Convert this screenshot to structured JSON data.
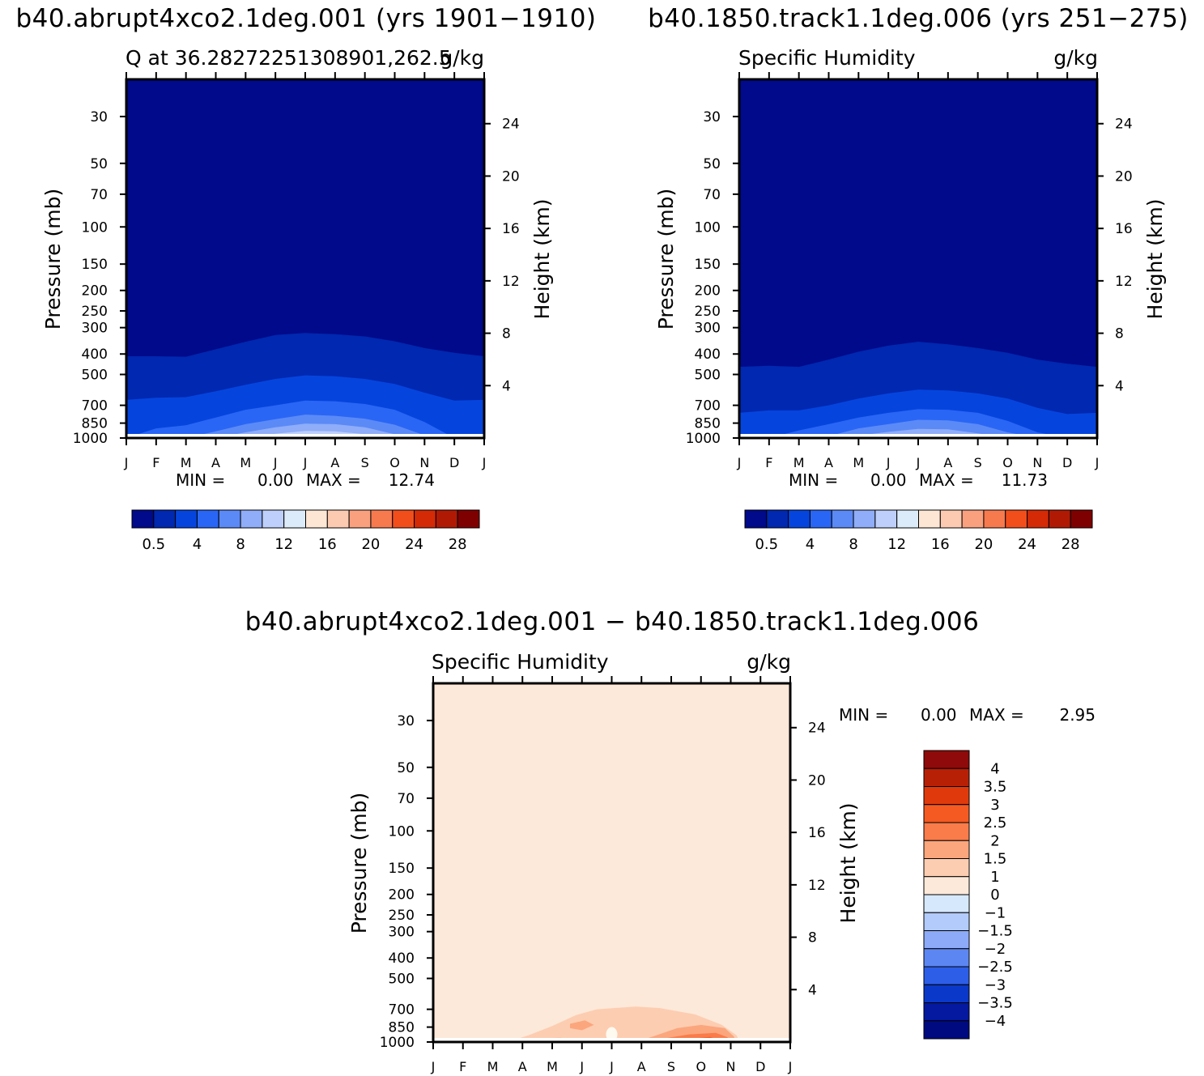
{
  "figure": {
    "panel_a_header": "b40.abrupt4xco2.1deg.001 (yrs 1901−1910)",
    "panel_b_header": "b40.1850.track1.1deg.006 (yrs 251−275)",
    "diff_header": "b40.abrupt4xco2.1deg.001 − b40.1850.track1.1deg.006"
  },
  "chart_data": [
    {
      "type": "contour",
      "title": "Q at 36.28272251308901,262.5",
      "units": "g/kg",
      "ylabel": "Pressure (mb)",
      "ylabel_right": "Height (km)",
      "x_ticks": [
        "J",
        "F",
        "M",
        "A",
        "M",
        "J",
        "J",
        "A",
        "S",
        "O",
        "N",
        "D",
        "J"
      ],
      "y_ticks": [
        "30",
        "50",
        "70",
        "100",
        "150",
        "200",
        "250",
        "300",
        "400",
        "500",
        "700",
        "850",
        "1000"
      ],
      "y_right_ticks": [
        "24",
        "20",
        "16",
        "12",
        "8",
        "4"
      ],
      "ylim": [
        1000,
        20
      ],
      "stats": {
        "min_label": "MIN =",
        "min": "0.00",
        "max_label": "MAX =",
        "max": "12.74"
      },
      "colorbar": {
        "orientation": "horizontal",
        "labels": [
          "0.5",
          "4",
          "8",
          "12",
          "16",
          "20",
          "24",
          "28"
        ],
        "colors": [
          "#000a8a",
          "#0028b0",
          "#0545de",
          "#2a66f5",
          "#5b8af7",
          "#8fadf8",
          "#bdcffa",
          "#dcebfa",
          "#fde6d4",
          "#fccab0",
          "#f9a07f",
          "#f77a4f",
          "#f24e1c",
          "#d42a06",
          "#b01a05",
          "#7f0000"
        ]
      },
      "contour_levels_shown": [
        {
          "level": 0.5,
          "top_pressure": [
            410,
            410,
            412,
            380,
            350,
            325,
            318,
            322,
            330,
            348,
            375,
            395,
            410
          ]
        },
        {
          "level": 2,
          "top_pressure": [
            660,
            645,
            640,
            600,
            560,
            525,
            505,
            510,
            525,
            555,
            610,
            665,
            660
          ]
        },
        {
          "level": 4,
          "top_pressure": [
            1000,
            900,
            870,
            800,
            735,
            700,
            665,
            670,
            690,
            735,
            840,
            1000,
            1000
          ]
        },
        {
          "level": 6,
          "top_pressure": [
            1000,
            1000,
            1000,
            930,
            860,
            815,
            775,
            785,
            810,
            865,
            970,
            1000,
            1000
          ]
        },
        {
          "level": 8,
          "top_pressure": [
            1000,
            1000,
            1000,
            1000,
            940,
            890,
            855,
            860,
            890,
            960,
            1000,
            1000,
            1000
          ]
        },
        {
          "level": 10,
          "top_pressure": [
            1000,
            1000,
            1000,
            1000,
            1000,
            955,
            925,
            930,
            960,
            1000,
            1000,
            1000,
            1000
          ]
        },
        {
          "level": 12,
          "top_pressure": [
            1000,
            1000,
            1000,
            1000,
            1000,
            1000,
            985,
            985,
            1000,
            1000,
            1000,
            1000,
            1000
          ]
        }
      ]
    },
    {
      "type": "contour",
      "title": "Specific Humidity",
      "units": "g/kg",
      "ylabel": "Pressure (mb)",
      "ylabel_right": "Height (km)",
      "x_ticks": [
        "J",
        "F",
        "M",
        "A",
        "M",
        "J",
        "J",
        "A",
        "S",
        "O",
        "N",
        "D",
        "J"
      ],
      "y_ticks": [
        "30",
        "50",
        "70",
        "100",
        "150",
        "200",
        "250",
        "300",
        "400",
        "500",
        "700",
        "850",
        "1000"
      ],
      "y_right_ticks": [
        "24",
        "20",
        "16",
        "12",
        "8",
        "4"
      ],
      "ylim": [
        1000,
        20
      ],
      "stats": {
        "min_label": "MIN =",
        "min": "0.00",
        "max_label": "MAX =",
        "max": "11.73"
      },
      "colorbar": {
        "orientation": "horizontal",
        "labels": [
          "0.5",
          "4",
          "8",
          "12",
          "16",
          "20",
          "24",
          "28"
        ],
        "colors": [
          "#000a8a",
          "#0028b0",
          "#0545de",
          "#2a66f5",
          "#5b8af7",
          "#8fadf8",
          "#bdcffa",
          "#dcebfa",
          "#fde6d4",
          "#fccab0",
          "#f9a07f",
          "#f77a4f",
          "#f24e1c",
          "#d42a06",
          "#b01a05",
          "#7f0000"
        ]
      },
      "contour_levels_shown": [
        {
          "level": 0.5,
          "top_pressure": [
            460,
            455,
            460,
            425,
            390,
            365,
            350,
            360,
            375,
            395,
            425,
            445,
            460
          ]
        },
        {
          "level": 2,
          "top_pressure": [
            760,
            740,
            740,
            700,
            650,
            615,
            590,
            595,
            615,
            650,
            720,
            770,
            760
          ]
        },
        {
          "level": 4,
          "top_pressure": [
            1000,
            1000,
            920,
            860,
            800,
            760,
            730,
            735,
            760,
            830,
            940,
            1000,
            1000
          ]
        },
        {
          "level": 6,
          "top_pressure": [
            1000,
            1000,
            1000,
            980,
            900,
            860,
            820,
            825,
            860,
            940,
            1000,
            1000,
            1000
          ]
        },
        {
          "level": 8,
          "top_pressure": [
            1000,
            1000,
            1000,
            1000,
            975,
            935,
            905,
            910,
            950,
            1000,
            1000,
            1000,
            1000
          ]
        },
        {
          "level": 10,
          "top_pressure": [
            1000,
            1000,
            1000,
            1000,
            1000,
            990,
            970,
            975,
            1000,
            1000,
            1000,
            1000,
            1000
          ]
        }
      ]
    },
    {
      "type": "contour",
      "title": "Specific Humidity",
      "units": "g/kg",
      "ylabel": "Pressure (mb)",
      "ylabel_right": "Height (km)",
      "x_ticks": [
        "J",
        "F",
        "M",
        "A",
        "M",
        "J",
        "J",
        "A",
        "S",
        "O",
        "N",
        "D",
        "J"
      ],
      "y_ticks": [
        "30",
        "50",
        "70",
        "100",
        "150",
        "200",
        "250",
        "300",
        "400",
        "500",
        "700",
        "850",
        "1000"
      ],
      "y_right_ticks": [
        "24",
        "20",
        "16",
        "12",
        "8",
        "4"
      ],
      "ylim": [
        1000,
        20
      ],
      "stats": {
        "min_label": "MIN =",
        "min": "0.00",
        "max_label": "MAX =",
        "max": "2.95"
      },
      "colorbar": {
        "orientation": "vertical",
        "labels": [
          "4",
          "3.5",
          "3",
          "2.5",
          "2",
          "1.5",
          "1",
          "0",
          "−1",
          "−1.5",
          "−2",
          "−2.5",
          "−3",
          "−3.5",
          "−4"
        ],
        "colors": [
          "#8f0a0a",
          "#b82006",
          "#e03a0c",
          "#f55a22",
          "#f97c4a",
          "#fba67d",
          "#fdcdb1",
          "#fde9d9",
          "#d6e8fb",
          "#b2cbfa",
          "#8caaf7",
          "#5c86f2",
          "#2c5ee8",
          "#0a38c8",
          "#0419a0",
          "#000a80"
        ]
      },
      "background_level_color": "#fde9d9",
      "regions": [
        {
          "level": 1.0,
          "color": "#fdcdb1",
          "points_month_pressure": [
            [
              2.5,
              1000
            ],
            [
              3.2,
              930
            ],
            [
              4.0,
              840
            ],
            [
              4.8,
              745
            ],
            [
              5.5,
              700
            ],
            [
              6.8,
              680
            ],
            [
              7.6,
              690
            ],
            [
              8.8,
              740
            ],
            [
              9.7,
              830
            ],
            [
              10.2,
              930
            ],
            [
              10.3,
              1000
            ]
          ]
        },
        {
          "level": 1.5,
          "color": "#fba67d",
          "points_month_pressure": [
            [
              3.2,
              1000
            ],
            [
              3.5,
              960
            ],
            [
              4.3,
              955
            ],
            [
              4.6,
              990
            ],
            [
              4.6,
              1000
            ]
          ]
        },
        {
          "level": 1.5,
          "color": "#fba67d",
          "points_month_pressure": [
            [
              4.6,
              820
            ],
            [
              5.1,
              790
            ],
            [
              5.4,
              830
            ],
            [
              5.0,
              880
            ],
            [
              4.6,
              860
            ]
          ]
        },
        {
          "level": 1.5,
          "color": "#fba67d",
          "points_month_pressure": [
            [
              6.8,
              1000
            ],
            [
              7.4,
              940
            ],
            [
              8.2,
              860
            ],
            [
              9.0,
              830
            ],
            [
              9.8,
              860
            ],
            [
              10.1,
              940
            ],
            [
              10.2,
              1000
            ]
          ]
        },
        {
          "level": 2.0,
          "color": "#f97c4a",
          "points_month_pressure": [
            [
              7.3,
              1000
            ],
            [
              7.8,
              960
            ],
            [
              8.6,
              920
            ],
            [
              9.5,
              905
            ],
            [
              9.9,
              950
            ],
            [
              9.9,
              1000
            ]
          ]
        },
        {
          "level": 2.5,
          "color": "#f55a22",
          "points_month_pressure": [
            [
              8.4,
              1000
            ],
            [
              8.7,
              965
            ],
            [
              9.3,
              945
            ],
            [
              9.6,
              980
            ],
            [
              9.6,
              1000
            ]
          ]
        }
      ],
      "light_spot": {
        "color": "#fffaf0",
        "month": 6.0,
        "pressure": 920
      }
    }
  ]
}
